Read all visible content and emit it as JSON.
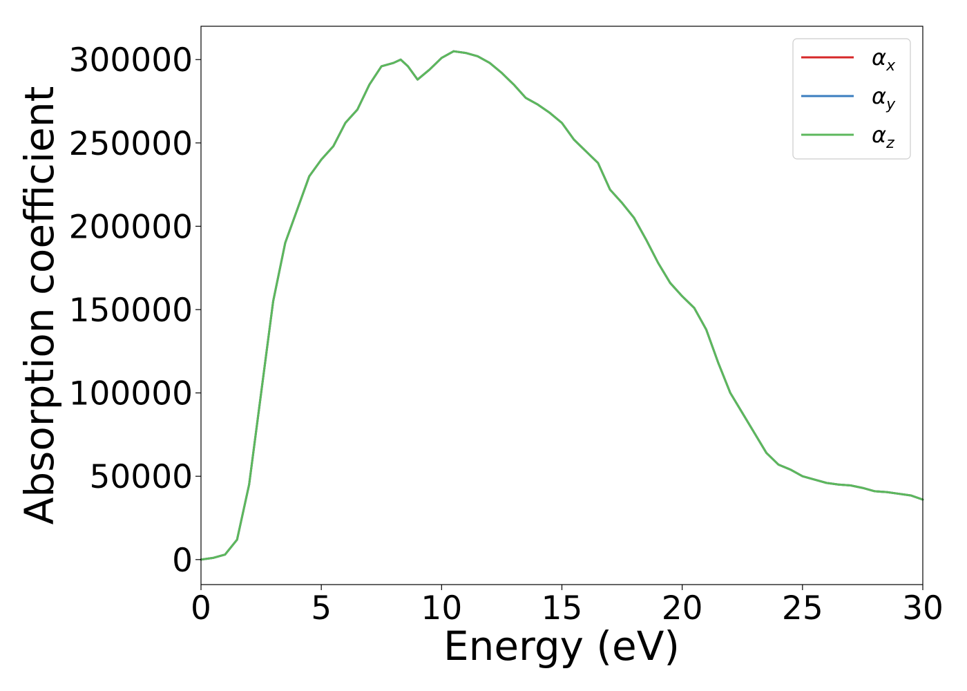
{
  "chart_data": {
    "type": "line",
    "title": "",
    "xlabel": "Energy (eV)",
    "ylabel": "Absorption coefficient",
    "xlim": [
      0,
      30
    ],
    "ylim": [
      -15000,
      320000
    ],
    "xticks": [
      0,
      5,
      10,
      15,
      20,
      25,
      30
    ],
    "xtick_labels": [
      "0",
      "5",
      "10",
      "15",
      "20",
      "25",
      "30"
    ],
    "yticks": [
      0,
      50000,
      100000,
      150000,
      200000,
      250000,
      300000
    ],
    "ytick_labels": [
      "0",
      "50000",
      "100000",
      "150000",
      "200000",
      "250000",
      "300000"
    ],
    "grid": false,
    "legend_position": "top-right",
    "x": [
      0,
      0.5,
      1.0,
      1.5,
      2.0,
      2.5,
      3.0,
      3.5,
      4.0,
      4.5,
      5.0,
      5.5,
      6.0,
      6.5,
      7.0,
      7.5,
      8.0,
      8.3,
      8.6,
      9.0,
      9.5,
      10.0,
      10.5,
      11.0,
      11.5,
      12.0,
      12.5,
      13.0,
      13.5,
      14.0,
      14.5,
      15.0,
      15.5,
      16.0,
      16.5,
      17.0,
      17.5,
      18.0,
      18.5,
      19.0,
      19.5,
      20.0,
      20.5,
      21.0,
      21.5,
      22.0,
      22.5,
      23.0,
      23.5,
      24.0,
      24.5,
      25.0,
      25.5,
      26.0,
      26.5,
      27.0,
      27.5,
      28.0,
      28.5,
      29.0,
      29.5,
      30.0
    ],
    "series": [
      {
        "name": "α_x",
        "legend_main": "α",
        "legend_sub": "x",
        "color": "#d62728",
        "values": [
          0,
          1000,
          3000,
          12000,
          45000,
          100000,
          155000,
          190000,
          210000,
          230000,
          240000,
          248000,
          262000,
          270000,
          285000,
          296000,
          298000,
          300000,
          296000,
          288000,
          294000,
          301000,
          305000,
          304000,
          302000,
          298000,
          292000,
          285000,
          277000,
          273000,
          268000,
          262000,
          252000,
          245000,
          238000,
          222000,
          214000,
          205000,
          192000,
          178000,
          166000,
          158000,
          151000,
          138000,
          118000,
          100000,
          88000,
          76000,
          64000,
          57000,
          54000,
          50000,
          48000,
          46000,
          45000,
          44500,
          43000,
          41000,
          40500,
          39500,
          38500,
          36000
        ]
      },
      {
        "name": "α_y",
        "legend_main": "α",
        "legend_sub": "y",
        "color": "#3a7dbf",
        "values": [
          0,
          1000,
          3000,
          12000,
          45000,
          100000,
          155000,
          190000,
          210000,
          230000,
          240000,
          248000,
          262000,
          270000,
          285000,
          296000,
          298000,
          300000,
          296000,
          288000,
          294000,
          301000,
          305000,
          304000,
          302000,
          298000,
          292000,
          285000,
          277000,
          273000,
          268000,
          262000,
          252000,
          245000,
          238000,
          222000,
          214000,
          205000,
          192000,
          178000,
          166000,
          158000,
          151000,
          138000,
          118000,
          100000,
          88000,
          76000,
          64000,
          57000,
          54000,
          50000,
          48000,
          46000,
          45000,
          44500,
          43000,
          41000,
          40500,
          39500,
          38500,
          36000
        ]
      },
      {
        "name": "α_z",
        "legend_main": "α",
        "legend_sub": "z",
        "color": "#5cb85c",
        "values": [
          0,
          1000,
          3000,
          12000,
          45000,
          100000,
          155000,
          190000,
          210000,
          230000,
          240000,
          248000,
          262000,
          270000,
          285000,
          296000,
          298000,
          300000,
          296000,
          288000,
          294000,
          301000,
          305000,
          304000,
          302000,
          298000,
          292000,
          285000,
          277000,
          273000,
          268000,
          262000,
          252000,
          245000,
          238000,
          222000,
          214000,
          205000,
          192000,
          178000,
          166000,
          158000,
          151000,
          138000,
          118000,
          100000,
          88000,
          76000,
          64000,
          57000,
          54000,
          50000,
          48000,
          46000,
          45000,
          44500,
          43000,
          41000,
          40500,
          39500,
          38500,
          36000
        ]
      }
    ]
  }
}
